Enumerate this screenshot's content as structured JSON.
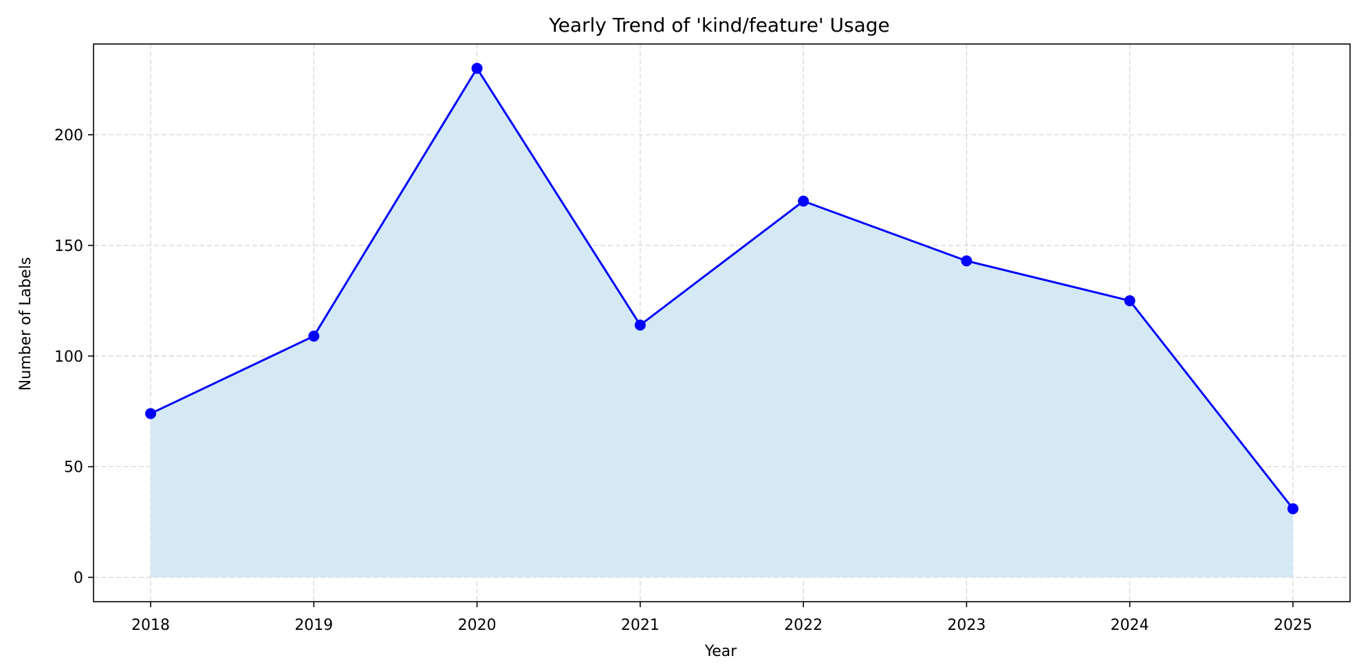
{
  "chart_data": {
    "type": "area",
    "title": "Yearly Trend of 'kind/feature' Usage",
    "xlabel": "Year",
    "ylabel": "Number of Labels",
    "x": [
      2018,
      2019,
      2020,
      2021,
      2022,
      2023,
      2024,
      2025
    ],
    "x_tick_labels": [
      "2018",
      "2019",
      "2020",
      "2021",
      "2022",
      "2023",
      "2024",
      "2025"
    ],
    "series": [
      {
        "values": [
          74,
          109,
          230,
          114,
          170,
          143,
          125,
          31
        ]
      }
    ],
    "xlim": [
      2017.65,
      2025.35
    ],
    "ylim": [
      -11,
      241
    ],
    "y_ticks": [
      0,
      50,
      100,
      150,
      200
    ],
    "y_tick_labels": [
      "0",
      "50",
      "100",
      "150",
      "200"
    ],
    "grid": true,
    "line_color": "#0000ff",
    "fill_color": "#d5e9f5",
    "marker_color": "#0000ff"
  }
}
